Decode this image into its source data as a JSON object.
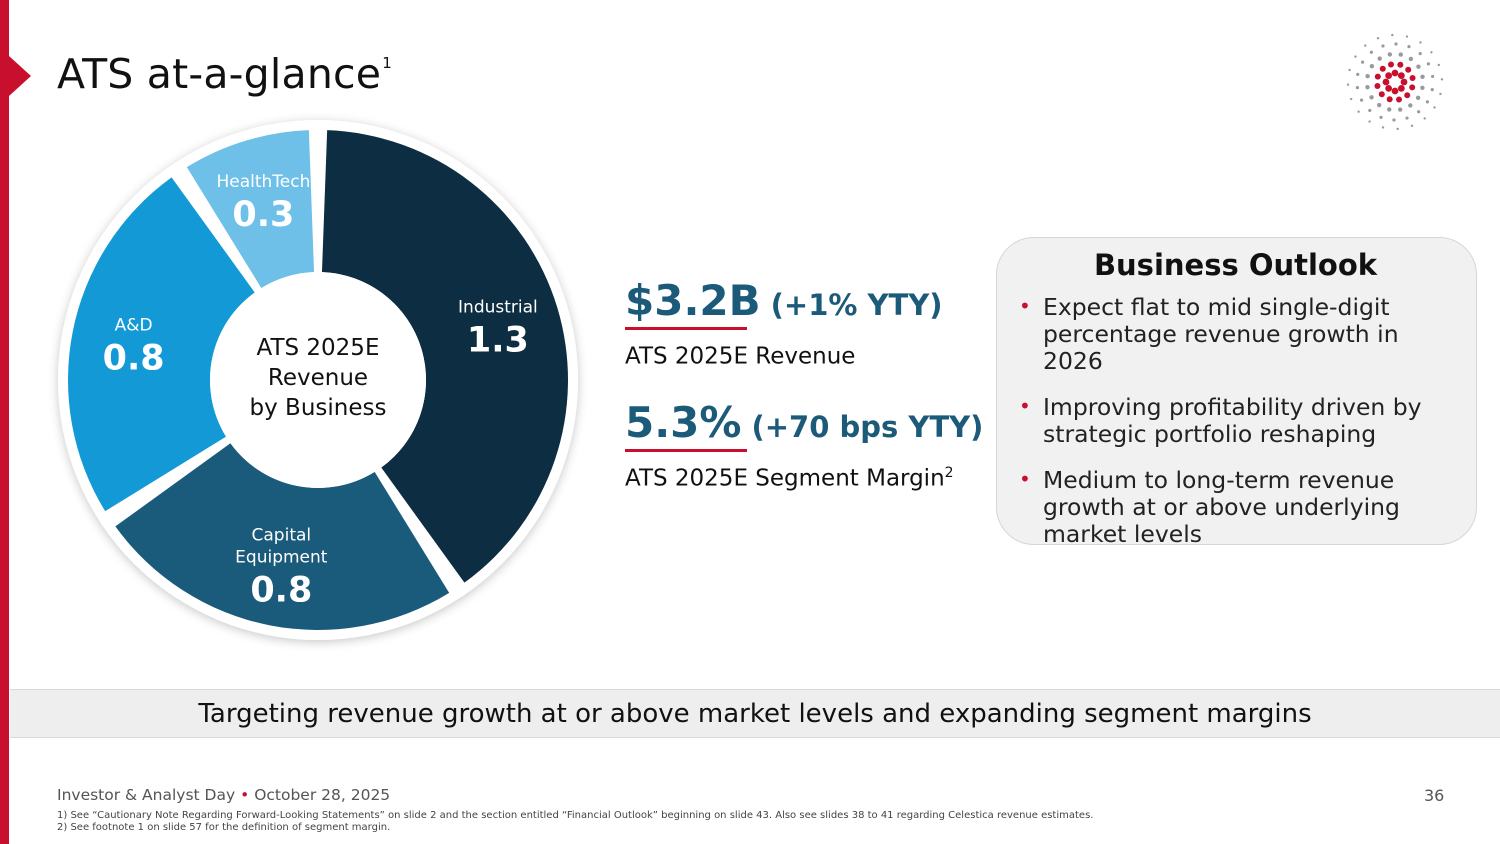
{
  "title": {
    "text": "ATS at-a-glance",
    "footnote_mark": "1"
  },
  "chart_data": {
    "type": "pie",
    "variant": "donut",
    "center_label": [
      "ATS 2025E",
      "Revenue",
      "by Business"
    ],
    "categories": [
      "Industrial",
      "Capital Equipment",
      "A&D",
      "HealthTech"
    ],
    "values": [
      1.3,
      0.8,
      0.8,
      0.3
    ],
    "label_lines": [
      [
        "Industrial"
      ],
      [
        "Capital",
        "Equipment"
      ],
      [
        "A&D"
      ],
      [
        "HealthTech"
      ]
    ],
    "value_labels": [
      "1.3",
      "0.8",
      "0.8",
      "0.3"
    ],
    "colors": [
      "#0d2e42",
      "#1a5a7b",
      "#139ad6",
      "#6ec0e8"
    ],
    "label_colors": [
      "#ffffff",
      "#ffffff",
      "#ffffff",
      "#ffffff"
    ]
  },
  "kpis": [
    {
      "value": "$3.2B",
      "change": "(+1% YTY)",
      "label": "ATS 2025E Revenue",
      "label_sup": ""
    },
    {
      "value": "5.3%",
      "change": "(+70 bps YTY)",
      "label": "ATS 2025E Segment Margin",
      "label_sup": "2"
    }
  ],
  "outlook": {
    "title": "Business Outlook",
    "bullets": [
      "Expect flat to mid single-digit percentage revenue growth in 2026",
      "Improving profitability driven by strategic portfolio reshaping",
      "Medium to long-term revenue growth at or above underlying market levels"
    ]
  },
  "banner": "Targeting revenue growth at or above market levels and expanding segment margins",
  "footer": {
    "event": "Investor & Analyst Day",
    "separator": "•",
    "date": "October 28, 2025",
    "page": "36"
  },
  "footnotes": [
    "1)  See “Cautionary Note Regarding Forward-Looking Statements” on slide 2 and the section entitled “Financial Outlook” beginning on slide 43. Also see slides 38 to 41 regarding Celestica revenue estimates.",
    "2)  See footnote 1 on slide 57 for the definition of segment margin."
  ],
  "colors": {
    "accent": "#c8102e",
    "kpi": "#1b5a79"
  },
  "icons": {
    "logo": "celestica-starburst-logo"
  }
}
